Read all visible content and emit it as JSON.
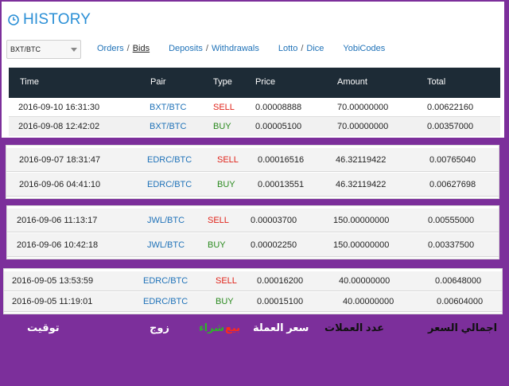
{
  "header": {
    "title": "HISTORY"
  },
  "market_select": {
    "value": "BXT/BTC"
  },
  "nav": {
    "orders": "Orders",
    "sep1": "/",
    "bids": "Bids",
    "deposits": "Deposits",
    "sep2": "/",
    "withdrawals": "Withdrawals",
    "lotto": "Lotto",
    "sep3": "/",
    "dice": "Dice",
    "yobicodes": "YobiCodes"
  },
  "table": {
    "columns": [
      "Time",
      "Pair",
      "Type",
      "Price",
      "Amount",
      "Total"
    ],
    "rows": [
      {
        "time": "2016-09-10 16:31:30",
        "pair": "BXT/BTC",
        "type": "SELL",
        "price": "0.00008888",
        "amount": "70.00000000",
        "total": "0.00622160"
      },
      {
        "time": "2016-09-08 12:42:02",
        "pair": "BXT/BTC",
        "type": "BUY",
        "price": "0.00005100",
        "amount": "70.00000000",
        "total": "0.00357000"
      }
    ]
  },
  "group2": [
    {
      "time": "2016-09-07 18:31:47",
      "pair": "EDRC/BTC",
      "type": "SELL",
      "price": "0.00016516",
      "amount": "46.32119422",
      "total": "0.00765040"
    },
    {
      "time": "2016-09-06 04:41:10",
      "pair": "EDRC/BTC",
      "type": "BUY",
      "price": "0.00013551",
      "amount": "46.32119422",
      "total": "0.00627698"
    }
  ],
  "group3": [
    {
      "time": "2016-09-06 11:13:17",
      "pair": "JWL/BTC",
      "type": "SELL",
      "price": "0.00003700",
      "amount": "150.00000000",
      "total": "0.00555000"
    },
    {
      "time": "2016-09-06 10:42:18",
      "pair": "JWL/BTC",
      "type": "BUY",
      "price": "0.00002250",
      "amount": "150.00000000",
      "total": "0.00337500"
    }
  ],
  "group4": [
    {
      "time": "2016-09-05 13:53:59",
      "pair": "EDRC/BTC",
      "type": "SELL",
      "price": "0.00016200",
      "amount": "40.00000000",
      "total": "0.00648000"
    },
    {
      "time": "2016-09-05 11:19:01",
      "pair": "EDRC/BTC",
      "type": "BUY",
      "price": "0.00015100",
      "amount": "40.00000000",
      "total": "0.00604000"
    }
  ],
  "arabic_labels": {
    "time": "توقيت",
    "pair": "زوج",
    "sell": "بيع",
    "buy": "شراء",
    "price": "سعر العملة",
    "amount": "عدد العملات",
    "total": "اجمالي السعر"
  },
  "colors": {
    "sell": "#e0231a",
    "buy": "#2b8a1f",
    "link": "#2a8fd6",
    "background": "#7c2f9b",
    "header_bg": "#1d2b36"
  }
}
